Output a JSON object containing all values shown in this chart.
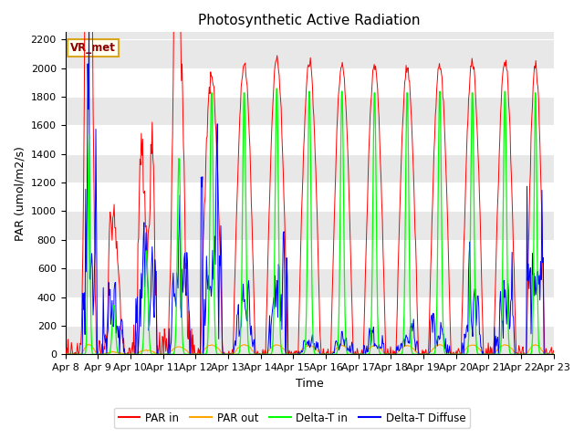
{
  "title": "Photosynthetic Active Radiation",
  "ylabel": "PAR (umol/m2/s)",
  "xlabel": "Time",
  "legend_label": "VR_met",
  "line_labels": [
    "PAR in",
    "PAR out",
    "Delta-T in",
    "Delta-T Diffuse"
  ],
  "line_colors": [
    "red",
    "orange",
    "lime",
    "blue"
  ],
  "ylim": [
    0,
    2250
  ],
  "yticks": [
    0,
    200,
    400,
    600,
    800,
    1000,
    1200,
    1400,
    1600,
    1800,
    2000,
    2200
  ],
  "bg_color": "#e8e8e8",
  "title_fontsize": 11,
  "axis_label_fontsize": 9,
  "tick_fontsize": 8
}
